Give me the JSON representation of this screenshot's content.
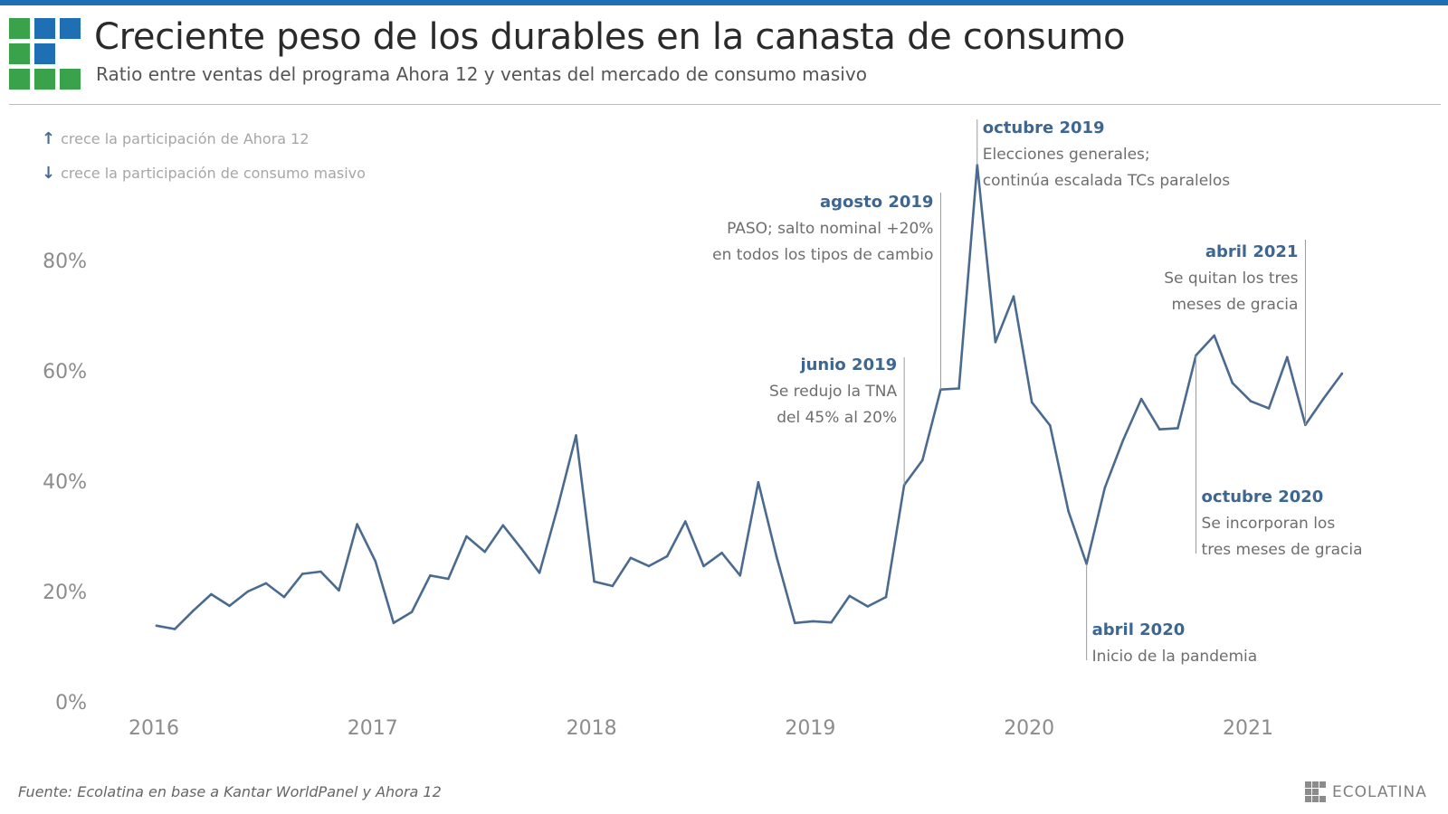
{
  "header": {
    "title": "Creciente peso de los durables en la canasta de consumo",
    "subtitle": "Ratio entre ventas del programa Ahora 12 y ventas del mercado de consumo masivo"
  },
  "legend": {
    "up_arrow": "↑",
    "up_text": "crece la participación de Ahora 12",
    "down_arrow": "↓",
    "down_text": "crece la participación de consumo masivo"
  },
  "colors": {
    "line": "#4a6b8f",
    "annotation_title": "#3d6690",
    "annotation_text": "#6e6e6e",
    "logo_green": "#3aa24a",
    "logo_blue": "#1f6fb5"
  },
  "chart_data": {
    "type": "line",
    "title": "Creciente peso de los durables en la canasta de consumo",
    "subtitle": "Ratio entre ventas del programa Ahora 12 y ventas del mercado de consumo masivo",
    "xlabel": "",
    "ylabel": "",
    "x_ticks": [
      "2016",
      "2017",
      "2018",
      "2019",
      "2020",
      "2021"
    ],
    "y_ticks": [
      "0%",
      "20%",
      "40%",
      "60%",
      "80%"
    ],
    "ylim": [
      0,
      100
    ],
    "grid": false,
    "start": "2016-01",
    "series": [
      {
        "values": [
          13.8,
          13.2,
          16.5,
          19.5,
          17.4,
          20.0,
          21.5,
          19.0,
          23.2,
          23.6,
          20.2,
          32.2,
          25.5,
          14.3,
          16.3,
          22.9,
          22.3,
          30.0,
          27.2,
          32.0,
          27.8,
          23.4,
          35.3,
          48.3,
          21.8,
          21.0,
          26.1,
          24.6,
          26.4,
          32.7,
          24.6,
          27.0,
          22.9,
          39.8,
          26.3,
          14.3,
          14.6,
          14.4,
          19.2,
          17.3,
          19.0,
          39.3,
          43.8,
          56.6,
          56.8,
          97.3,
          65.2,
          73.5,
          54.3,
          50.1,
          34.6,
          25.0,
          38.8,
          47.4,
          54.9,
          49.4,
          49.6,
          62.8,
          66.4,
          57.8,
          54.5,
          53.2,
          62.5,
          50.2,
          55.0,
          59.5
        ]
      }
    ],
    "annotations": [
      {
        "date": "2019-06",
        "title": "junio 2019",
        "lines": [
          "Se redujo la TNA",
          "del 45% al 20%"
        ]
      },
      {
        "date": "2019-08",
        "title": "agosto 2019",
        "lines": [
          "PASO; salto nominal +20%",
          "en todos los tipos de cambio"
        ]
      },
      {
        "date": "2019-10",
        "title": "octubre 2019",
        "lines": [
          "Elecciones generales;",
          "continúa escalada TCs paralelos"
        ]
      },
      {
        "date": "2020-04",
        "title": "abril 2020",
        "lines": [
          "Inicio de la pandemia"
        ]
      },
      {
        "date": "2020-10",
        "title": "octubre 2020",
        "lines": [
          "Se incorporan los",
          "tres meses de gracia"
        ]
      },
      {
        "date": "2021-04",
        "title": "abril 2021",
        "lines": [
          "Se quitan los tres",
          "meses de gracia"
        ]
      }
    ]
  },
  "footer": {
    "source": "Fuente: Ecolatina en base a Kantar WorldPanel y Ahora 12",
    "brand": "ECOLATINA"
  }
}
